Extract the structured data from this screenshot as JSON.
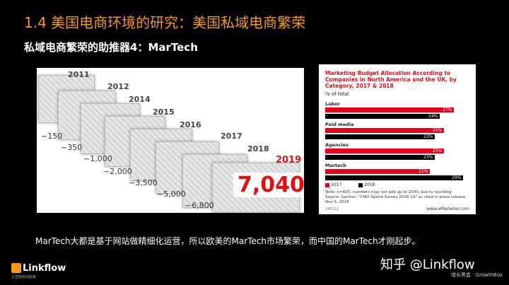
{
  "slide": {
    "title": "1.4 美国电商环境的研究：美国私域电商繁荣",
    "subtitle": "私域电商繁荣的助推器4：MarTech",
    "caption": "MarTech大都是基于网站做精细化运营，所以欧美的MarTech市场繁荣，而中国的MarTech才刚起步。"
  },
  "collage": {
    "years": [
      "2011",
      "2012",
      "2014",
      "2015",
      "2016",
      "2017",
      "2018",
      "2019"
    ],
    "counts": [
      "~150",
      "~350",
      "~1,000",
      "~2,000",
      "~3,500",
      "~5,000",
      "~6,800"
    ],
    "big_number": "7,040",
    "highlight_color": "#d11111"
  },
  "chart": {
    "title": "Marketing Budget Allocation According to Companies in North America and the UK, by Category, 2017 & 2018",
    "subtitle": "% of total",
    "note": "Note: n=605; numbers may not add up to 100% due to rounding",
    "source": "Source: Gartner, \"CMO Spend Survey 2018-19\" as cited in press release, Nov 5, 2018",
    "footer_id": "245112",
    "brand": "www.eMarketer.com"
  },
  "chart_data": {
    "type": "bar",
    "categories": [
      "Labor",
      "Paid media",
      "Agencies",
      "Martech"
    ],
    "series": [
      {
        "name": "2017",
        "color": "#e8001c",
        "values": [
          27,
          25,
          25,
          22
        ]
      },
      {
        "name": "2018",
        "color": "#000000",
        "values": [
          24,
          23,
          23,
          29
        ]
      }
    ],
    "value_labels": [
      [
        "27%",
        "24%"
      ],
      [
        "25%",
        "23%"
      ],
      [
        "25%",
        "23%"
      ],
      [
        "22%",
        "29%"
      ]
    ],
    "xlim": [
      0,
      30
    ],
    "legend": "bottom-left",
    "grid": false
  },
  "branding": {
    "logo_name": "Linkflow",
    "logo_tagline": "让营销自动起来",
    "watermark": "知乎 @Linkflow",
    "watermark_sub": "增长黑盒 · GrowthBox"
  }
}
